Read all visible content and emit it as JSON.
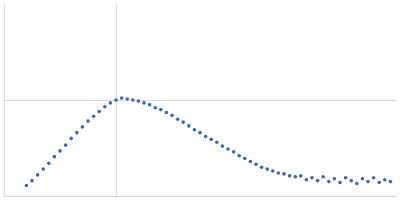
{
  "chart_data": {
    "type": "scatter",
    "color": "#3a68b8",
    "marker": "circle",
    "grid": true,
    "tick_labels": false,
    "xlim": [
      0,
      3.5
    ],
    "xticks": [
      1
    ],
    "ylim": [
      0,
      2
    ],
    "yticks": [
      1
    ],
    "x": [
      0.2,
      0.25,
      0.3,
      0.35,
      0.4,
      0.45,
      0.5,
      0.55,
      0.6,
      0.65,
      0.7,
      0.75,
      0.8,
      0.85,
      0.9,
      0.95,
      1.0,
      1.05,
      1.1,
      1.15,
      1.2,
      1.25,
      1.3,
      1.35,
      1.4,
      1.45,
      1.5,
      1.55,
      1.6,
      1.65,
      1.7,
      1.75,
      1.8,
      1.85,
      1.9,
      1.95,
      2.0,
      2.05,
      2.1,
      2.15,
      2.2,
      2.25,
      2.3,
      2.35,
      2.4,
      2.45,
      2.5,
      2.55,
      2.6,
      2.65,
      2.7,
      2.75,
      2.8,
      2.85,
      2.9,
      2.95,
      3.0,
      3.05,
      3.1,
      3.15,
      3.2,
      3.25,
      3.3,
      3.35,
      3.4,
      3.45
    ],
    "values": [
      0.11,
      0.16,
      0.22,
      0.28,
      0.34,
      0.41,
      0.47,
      0.53,
      0.6,
      0.66,
      0.72,
      0.78,
      0.83,
      0.88,
      0.93,
      0.97,
      1.0,
      1.02,
      1.01,
      1.0,
      0.99,
      0.97,
      0.95,
      0.92,
      0.9,
      0.87,
      0.84,
      0.8,
      0.77,
      0.73,
      0.69,
      0.66,
      0.62,
      0.59,
      0.56,
      0.52,
      0.49,
      0.46,
      0.42,
      0.39,
      0.36,
      0.33,
      0.3,
      0.28,
      0.26,
      0.24,
      0.23,
      0.21,
      0.2,
      0.21,
      0.17,
      0.19,
      0.16,
      0.2,
      0.15,
      0.18,
      0.14,
      0.19,
      0.16,
      0.13,
      0.18,
      0.15,
      0.19,
      0.14,
      0.17,
      0.15
    ]
  }
}
